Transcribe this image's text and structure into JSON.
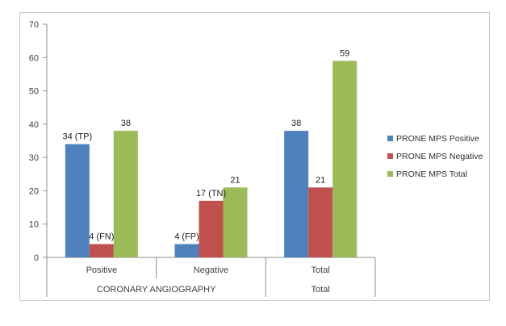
{
  "chart_data": {
    "type": "bar",
    "title": "",
    "xlabel": "",
    "ylabel": "",
    "ylim": [
      0,
      70
    ],
    "yticks": [
      0,
      10,
      20,
      30,
      40,
      50,
      60,
      70
    ],
    "grid": false,
    "legend_position": "right",
    "categories": [
      "Positive",
      "Negative",
      "Total"
    ],
    "category_groups": [
      {
        "label": "CORONARY ANGIOGRAPHY",
        "categories": [
          "Positive",
          "Negative"
        ]
      },
      {
        "label": "Total",
        "categories": [
          "Total"
        ]
      }
    ],
    "series": [
      {
        "name": "PRONE MPS Positive",
        "color": "#4f81bd",
        "values": [
          34,
          4,
          38
        ],
        "labels": [
          "34 (TP)",
          "4 (FP)",
          "38"
        ]
      },
      {
        "name": "PRONE MPS Negative",
        "color": "#c0504d",
        "values": [
          4,
          17,
          21
        ],
        "labels": [
          "4 (FN)",
          "17 (TN)",
          "21"
        ]
      },
      {
        "name": "PRONE MPS Total",
        "color": "#9bbb59",
        "values": [
          38,
          21,
          59
        ],
        "labels": [
          "38",
          "21",
          "59"
        ]
      }
    ]
  }
}
